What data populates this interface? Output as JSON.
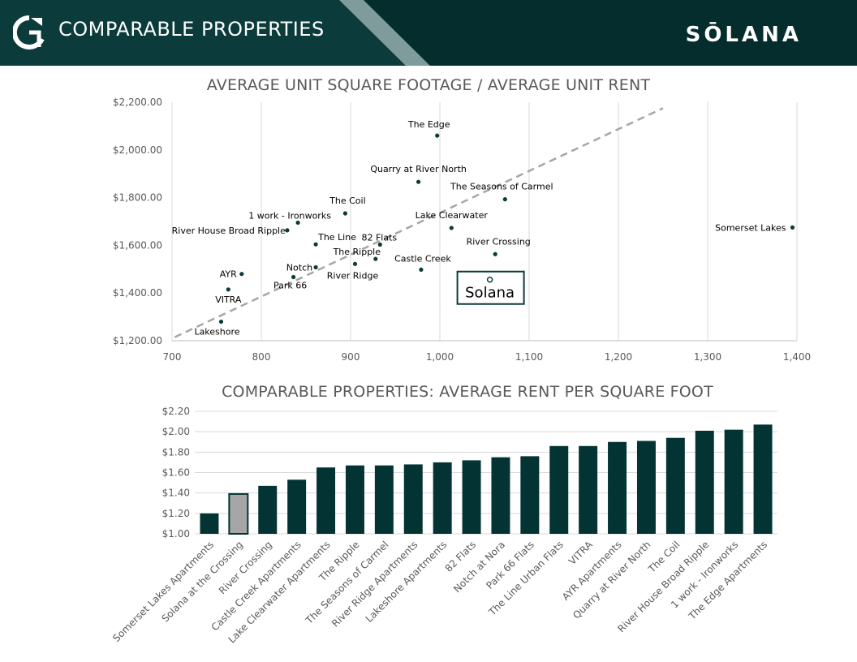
{
  "header": {
    "title": "COMPARABLE PROPERTIES",
    "brand": "SŌLANA"
  },
  "colors": {
    "header_bg": "#0b3b3b",
    "bar_fill": "#033333",
    "highlight_fill": "#a6a6a6",
    "trendline": "#a6a6a6",
    "point": "#0b3b3b"
  },
  "chart_data": [
    {
      "type": "scatter",
      "title": "AVERAGE UNIT SQUARE FOOTAGE / AVERAGE UNIT RENT",
      "xlabel": "",
      "ylabel": "",
      "xlim": [
        700,
        1400
      ],
      "ylim": [
        1200,
        2200
      ],
      "x_ticks": [
        "700",
        "800",
        "900",
        "1,000",
        "1,100",
        "1,200",
        "1,300",
        "1,400"
      ],
      "y_ticks": [
        "$1,200.00",
        "$1,400.00",
        "$1,600.00",
        "$1,800.00",
        "$2,000.00",
        "$2,200.00"
      ],
      "grid": "vertical",
      "trendline": {
        "style": "dashed",
        "x": [
          703,
          1250
        ],
        "y": [
          1215,
          2175
        ]
      },
      "points": [
        {
          "label": "The Edge",
          "x": 997,
          "y": 2060
        },
        {
          "label": "Quarry at River North",
          "x": 976,
          "y": 1866
        },
        {
          "label": "The Seasons of Carmel",
          "x": 1073,
          "y": 1793
        },
        {
          "label": "The Coil",
          "x": 894,
          "y": 1734
        },
        {
          "label": "1 work - Ironworks",
          "x": 841,
          "y": 1695
        },
        {
          "label": "River House Broad Ripple",
          "x": 829,
          "y": 1663
        },
        {
          "label": "Lake Clearwater",
          "x": 1013,
          "y": 1673
        },
        {
          "label": "Somerset Lakes",
          "x": 1395,
          "y": 1675
        },
        {
          "label": "The Line",
          "x": 861,
          "y": 1604
        },
        {
          "label": "82 Flats",
          "x": 933,
          "y": 1603
        },
        {
          "label": "River Crossing",
          "x": 1062,
          "y": 1563
        },
        {
          "label": "The Ripple",
          "x": 928,
          "y": 1543
        },
        {
          "label": "Castle Creek",
          "x": 979,
          "y": 1498
        },
        {
          "label": "Notch",
          "x": 861,
          "y": 1508
        },
        {
          "label": "River Ridge",
          "x": 905,
          "y": 1522
        },
        {
          "label": "AYR",
          "x": 778,
          "y": 1480
        },
        {
          "label": "Park 66",
          "x": 836,
          "y": 1467
        },
        {
          "label": "VITRA",
          "x": 763,
          "y": 1415
        },
        {
          "label": "Lakeshore",
          "x": 755,
          "y": 1280
        },
        {
          "label": "Solana",
          "x": 1056,
          "y": 1456,
          "highlight": true
        }
      ]
    },
    {
      "type": "bar",
      "title": "COMPARABLE PROPERTIES: AVERAGE RENT PER SQUARE FOOT",
      "xlabel": "",
      "ylabel": "",
      "ylim": [
        1.0,
        2.2
      ],
      "y_ticks": [
        "$1.00",
        "$1.20",
        "$1.40",
        "$1.60",
        "$1.80",
        "$2.00",
        "$2.20"
      ],
      "grid": "horizontal",
      "categories": [
        "Somerset Lakes Apartments",
        "Solana at the Crossing",
        "River Crossing",
        "Castle Creek Apartments",
        "Lake Clearwater Apartments",
        "The Ripple",
        "The Seasons of Carmel",
        "River Ridge Apartments",
        "Lakeshore Apartments",
        "82 Flats",
        "Notch at Nora",
        "Park 66 Flats",
        "The Line Urban Flats",
        "VITRA",
        "AYR Apartments",
        "Quarry at River North",
        "The Coil",
        "River House Broad Ripple",
        "1 work - Ironworks",
        "The Edge Apartments"
      ],
      "values": [
        1.2,
        1.39,
        1.47,
        1.53,
        1.65,
        1.67,
        1.67,
        1.68,
        1.7,
        1.72,
        1.75,
        1.76,
        1.86,
        1.86,
        1.9,
        1.91,
        1.94,
        2.01,
        2.02,
        2.07
      ],
      "highlight_index": 1
    }
  ]
}
